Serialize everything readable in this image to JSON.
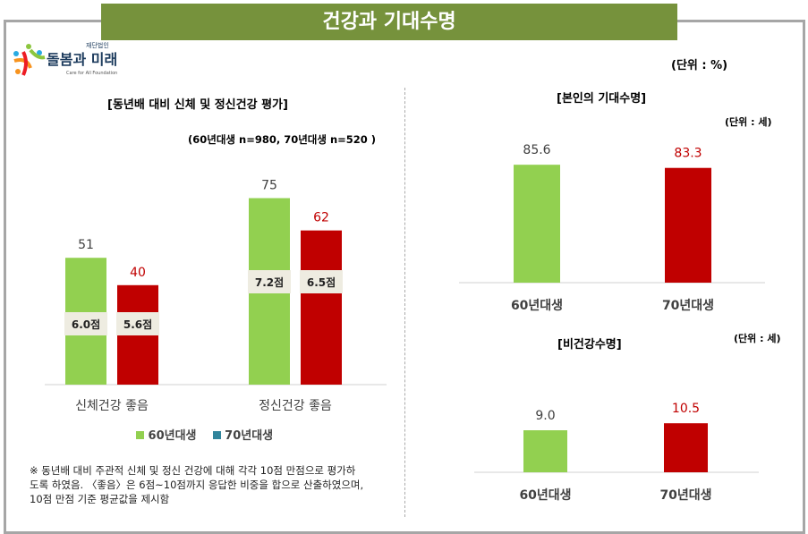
{
  "title": "건강과 기대수명",
  "logo": {
    "text": "돌봄과 미래",
    "sub": "재단법인",
    "en": "Care for All Foundation"
  },
  "unit_main": "(단위 : %)",
  "note": [
    "※ 동년배 대비 주관적 신체 및 정신 건강에 대해 각각 10점 만점으로 평가하",
    "도록 하였음. 〈좋음〉은 6점~10점까지 응답한 비중을 합으로 산출하였으며,",
    "10점 만점 기준 평균값을 제시함"
  ],
  "legend": [
    {
      "name": "60년대생",
      "color": "#92d050"
    },
    {
      "name": "70년대생",
      "color": "#31859c"
    }
  ],
  "chart_data": [
    {
      "type": "bar",
      "title": "[동년배 대비 신체 및 정신건강 평가]",
      "subtitle": "(60년대생 n=980, 70년대생 n=520 )",
      "categories": [
        "신체건강 좋음",
        "정신건강 좋음"
      ],
      "series": [
        {
          "name": "60년대생",
          "values": [
            51,
            75
          ],
          "scores": [
            "6.0점",
            "7.2점"
          ],
          "color": "#92d050"
        },
        {
          "name": "70년대생",
          "values": [
            40,
            62
          ],
          "scores": [
            "5.6점",
            "6.5점"
          ],
          "color": "#c00000"
        }
      ]
    },
    {
      "type": "bar",
      "title": "[본인의 기대수명]",
      "unit": "(단위 : 세)",
      "categories": [
        "60년대생",
        "70년대생"
      ],
      "values": [
        85.6,
        83.3
      ],
      "colors": [
        "#92d050",
        "#c00000"
      ]
    },
    {
      "type": "bar",
      "title": "[비건강수명]",
      "unit": "(단위 : 세)",
      "categories": [
        "60년대생",
        "70년대생"
      ],
      "values": [
        9.0,
        10.5
      ],
      "colors": [
        "#92d050",
        "#c00000"
      ]
    }
  ]
}
